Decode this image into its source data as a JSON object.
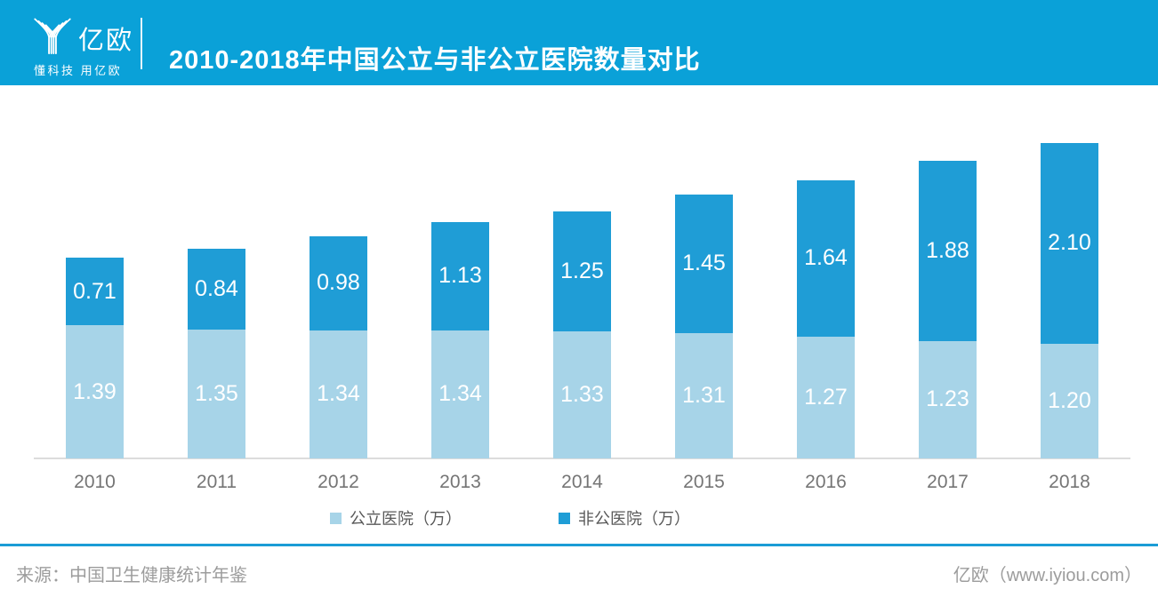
{
  "header": {
    "logo_text": "亿欧",
    "logo_tagline": "懂科技 用亿欧",
    "title": "2010-2018年中国公立与非公立医院数量对比"
  },
  "chart_data": {
    "type": "bar",
    "stacked": true,
    "categories": [
      "2010",
      "2011",
      "2012",
      "2013",
      "2014",
      "2015",
      "2016",
      "2017",
      "2018"
    ],
    "series": [
      {
        "name": "公立医院（万）",
        "color": "#a7d4e8",
        "values": [
          1.39,
          1.35,
          1.34,
          1.34,
          1.33,
          1.31,
          1.27,
          1.23,
          1.2
        ]
      },
      {
        "name": "非公医院（万）",
        "color": "#1f9dd6",
        "values": [
          0.71,
          0.84,
          0.98,
          1.13,
          1.25,
          1.45,
          1.64,
          1.88,
          2.1
        ]
      }
    ],
    "title": "2010-2018年中国公立与非公立医院数量对比",
    "xlabel": "",
    "ylabel": "",
    "ylim": [
      0,
      3.5
    ],
    "grid": false,
    "legend_position": "bottom",
    "value_labels": "inside-white"
  },
  "legend": {
    "public": "公立医院（万）",
    "nonpublic": "非公医院（万）"
  },
  "footer": {
    "source": "来源：中国卫生健康统计年鉴",
    "credit": "亿欧（www.iyiou.com）"
  },
  "colors": {
    "header_bg": "#0aa1d8",
    "bar_public": "#a7d4e8",
    "bar_nonpublic": "#1f9dd6",
    "rule": "#1b9cd6",
    "axis_line": "#dcdcdc"
  }
}
